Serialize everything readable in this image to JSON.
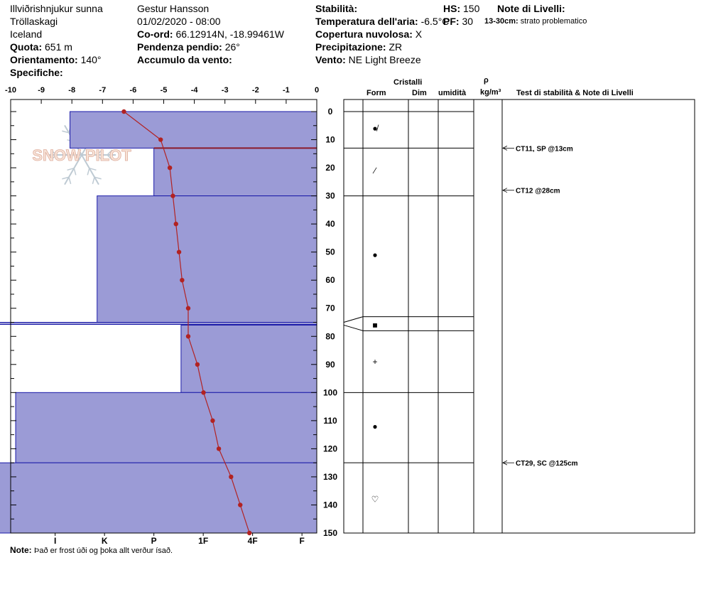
{
  "header": {
    "location": "Illviðrishnjukur sunna",
    "region": "Tröllaskagi",
    "country": "Iceland",
    "quota_label": "Quota:",
    "quota_value": "651 m",
    "orient_label": "Orientamento:",
    "orient_value": "140°",
    "specifiche_label": "Specifiche:",
    "observer": "Gestur Hansson",
    "datetime": "01/02/2020 - 08:00",
    "coord_label": "Co-ord:",
    "coord_value": "66.12914N, -18.99461W",
    "pendenza_label": "Pendenza pendio:",
    "pendenza_value": "26°",
    "accumulo_label": "Accumulo da vento:",
    "stabilita_label": "Stabilità:",
    "temp_label": "Temperatura dell'aria:",
    "temp_value": "-6.5°C",
    "copertura_label": "Copertura nuvolosa:",
    "copertura_value": "X",
    "precip_label": "Precipitazione:",
    "precip_value": "ZR",
    "vento_label": "Vento:",
    "vento_value": "NE Light Breeze",
    "hs_label": "HS:",
    "hs_value": "150",
    "pf_label": "PF:",
    "pf_value": "30",
    "note_livelli_label": "Note di Livelli:",
    "note_livelli_range": "13-30cm:",
    "note_livelli_text": "strato problematico"
  },
  "logo_text": "SNOW PILOT",
  "footer": {
    "note_label": "Note:",
    "note_text": "Það er frost úði og þoka allt verður ísað."
  },
  "colors": {
    "hardness_fill": "#9b9bd6",
    "hardness_stroke": "#1a1aa8",
    "temp_line": "#b22222",
    "weak_layer": "#8b1a2b"
  },
  "columns": {
    "cristalli": "Cristalli",
    "form": "Form",
    "dim": "Dim",
    "umidita": "umidità",
    "rho": "ρ",
    "density_unit": "kg/m³",
    "tests_notes": "Test di stabilità & Note di Livelli"
  },
  "chart_data": {
    "type": "snow-profile",
    "temperature_axis": {
      "ticks": [
        "-10",
        "-9",
        "-8",
        "-7",
        "-6",
        "-5",
        "-4",
        "-3",
        "-2",
        "-1",
        "0"
      ],
      "range": [
        -10,
        0
      ]
    },
    "depth_axis": {
      "ticks": [
        "0",
        "10",
        "20",
        "30",
        "40",
        "50",
        "60",
        "70",
        "80",
        "90",
        "100",
        "110",
        "120",
        "130",
        "140",
        "150"
      ],
      "range": [
        0,
        150
      ],
      "minor_step": 5
    },
    "hardness_axis": {
      "ticks": [
        "I",
        "K",
        "P",
        "1F",
        "4F",
        "F"
      ],
      "range_index_per_tick": 1.0
    },
    "hardness_layers": [
      {
        "top": 0,
        "bottom": 13,
        "value": 5.0
      },
      {
        "top": 13,
        "bottom": 30,
        "value": 3.3
      },
      {
        "top": 30,
        "bottom": 75,
        "value": 4.45
      },
      {
        "top": 75,
        "bottom": 76,
        "value": 8.85
      },
      {
        "top": 76,
        "bottom": 100,
        "value": 2.75
      },
      {
        "top": 100,
        "bottom": 125,
        "value": 6.1
      },
      {
        "top": 125,
        "bottom": 150,
        "value": 7.2
      }
    ],
    "weak_layer_depth": 13,
    "temperature_profile": [
      {
        "depth": 0,
        "temp": -6.3
      },
      {
        "depth": 10,
        "temp": -5.1
      },
      {
        "depth": 20,
        "temp": -4.8
      },
      {
        "depth": 30,
        "temp": -4.7
      },
      {
        "depth": 40,
        "temp": -4.6
      },
      {
        "depth": 50,
        "temp": -4.5
      },
      {
        "depth": 60,
        "temp": -4.4
      },
      {
        "depth": 70,
        "temp": -4.2
      },
      {
        "depth": 80,
        "temp": -4.2
      },
      {
        "depth": 90,
        "temp": -3.9
      },
      {
        "depth": 100,
        "temp": -3.7
      },
      {
        "depth": 110,
        "temp": -3.4
      },
      {
        "depth": 120,
        "temp": -3.2
      },
      {
        "depth": 130,
        "temp": -2.8
      },
      {
        "depth": 140,
        "temp": -2.5
      },
      {
        "depth": 150,
        "temp": -2.2
      }
    ],
    "layer_boundaries": [
      0,
      13,
      30,
      75,
      76,
      100,
      125,
      150
    ],
    "grain_forms": [
      {
        "depth": 6,
        "symbol": "●̸"
      },
      {
        "depth": 21,
        "symbol": "∕"
      },
      {
        "depth": 51,
        "symbol": "●"
      },
      {
        "depth": 76,
        "symbol": "■"
      },
      {
        "depth": 89,
        "symbol": "+"
      },
      {
        "depth": 112,
        "symbol": "●"
      },
      {
        "depth": 138,
        "symbol": "♡"
      }
    ],
    "stability_tests": [
      {
        "depth": 13,
        "label": "CT11, SP @13cm"
      },
      {
        "depth": 28,
        "label": "CT12 @28cm"
      },
      {
        "depth": 125,
        "label": "CT29, SC @125cm"
      }
    ]
  }
}
